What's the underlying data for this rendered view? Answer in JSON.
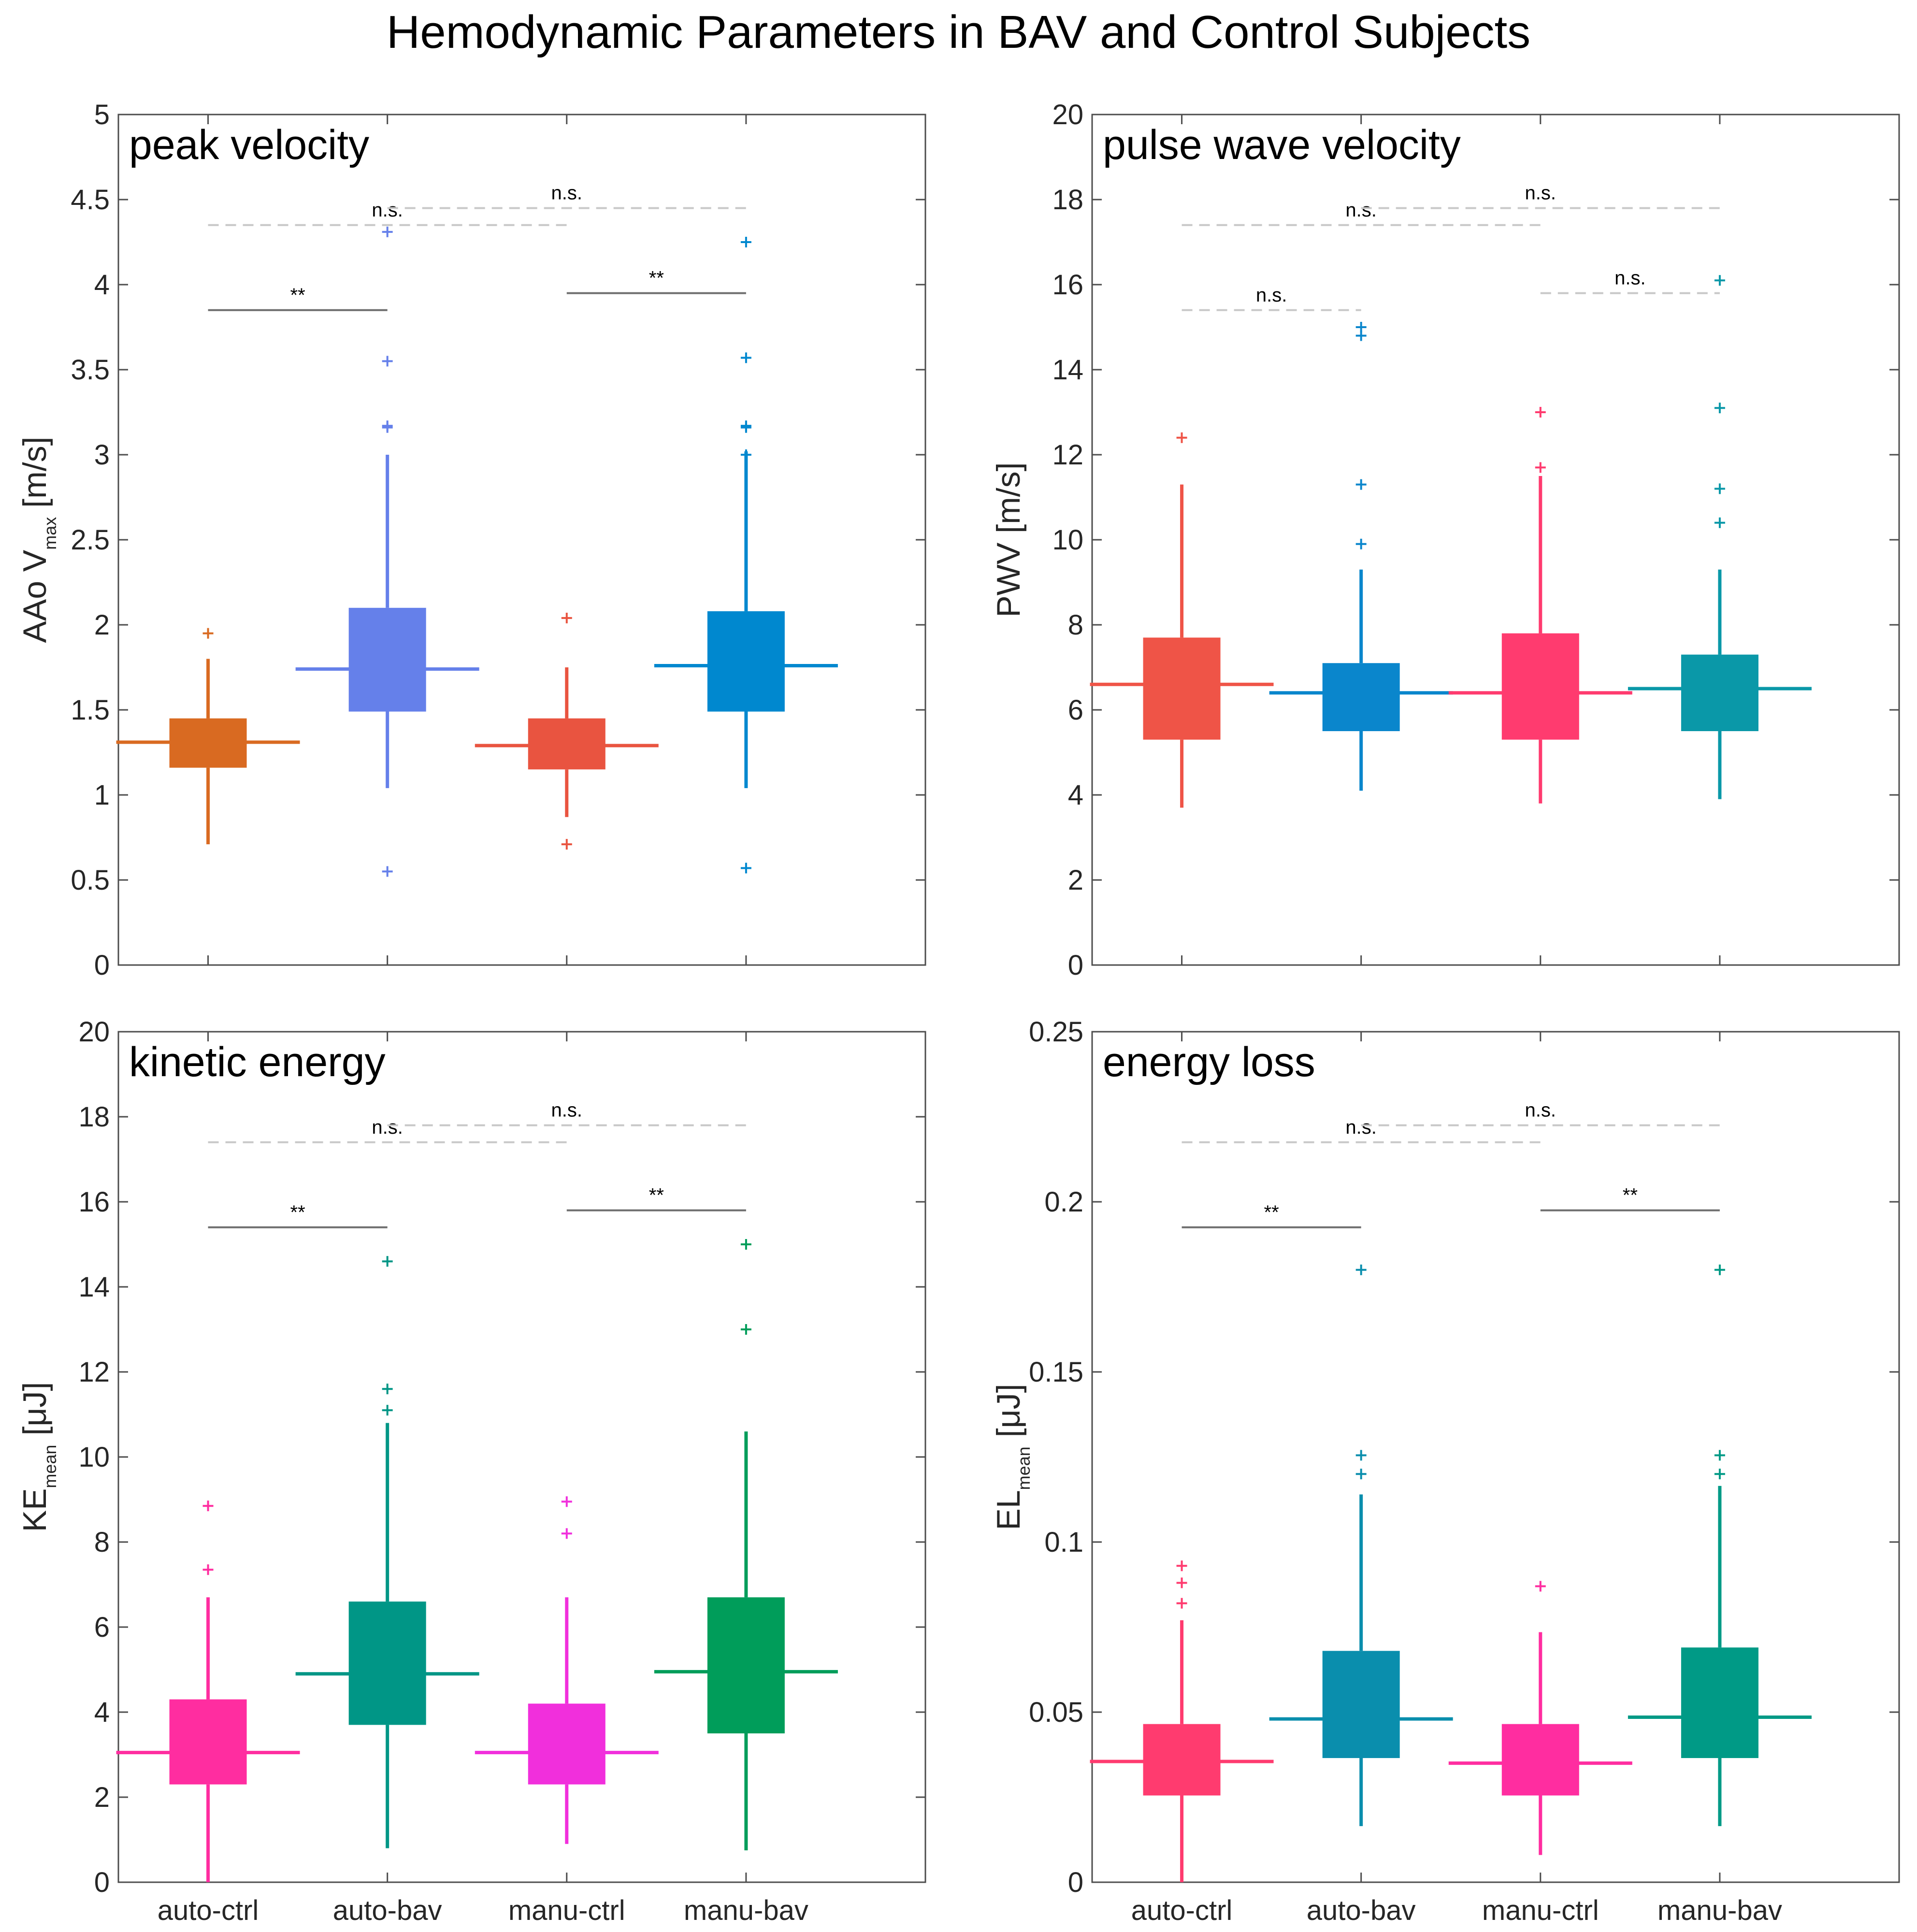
{
  "title": "Hemodynamic Parameters in BAV and Control Subjects",
  "chart_data": [
    {
      "type": "box",
      "title": "peak velocity",
      "ylabel": {
        "main": "AAo V",
        "sub": "max",
        "unit": "[m/s]"
      },
      "ylim": [
        0,
        5
      ],
      "yticks": [
        "0",
        "0.5",
        "1",
        "1.5",
        "2",
        "2.5",
        "3",
        "3.5",
        "4",
        "4.5",
        "5"
      ],
      "categories": [
        "auto-ctrl",
        "auto-bav",
        "manu-ctrl",
        "manu-bav"
      ],
      "boxes": [
        {
          "color": "#D96A21",
          "q1": 1.16,
          "median": 1.31,
          "q3": 1.45,
          "whisker_low": 0.71,
          "whisker_high": 1.8,
          "outliers": [
            1.95
          ]
        },
        {
          "color": "#6580EA",
          "q1": 1.49,
          "median": 1.74,
          "q3": 2.1,
          "whisker_low": 1.04,
          "whisker_high": 3.0,
          "outliers": [
            0.55,
            3.16,
            3.17,
            3.55,
            4.31
          ]
        },
        {
          "color": "#E95440",
          "q1": 1.15,
          "median": 1.29,
          "q3": 1.45,
          "whisker_low": 0.87,
          "whisker_high": 1.75,
          "outliers": [
            0.71,
            2.04
          ]
        },
        {
          "color": "#0088CF",
          "q1": 1.49,
          "median": 1.76,
          "q3": 2.08,
          "whisker_low": 1.04,
          "whisker_high": 3.02,
          "outliers": [
            0.57,
            3.0,
            3.16,
            3.17,
            3.57,
            4.25
          ]
        }
      ],
      "comparisons": [
        {
          "from": 0,
          "to": 1,
          "y": 3.85,
          "label": "**",
          "style": "solid"
        },
        {
          "from": 2,
          "to": 3,
          "y": 3.95,
          "label": "**",
          "style": "solid"
        },
        {
          "from": 0,
          "to": 2,
          "y": 4.35,
          "label": "n.s.",
          "style": "dashed"
        },
        {
          "from": 1,
          "to": 3,
          "y": 4.45,
          "label": "n.s.",
          "style": "dashed"
        }
      ]
    },
    {
      "type": "box",
      "title": "pulse wave velocity",
      "ylabel": {
        "main": "PWV",
        "sub": "",
        "unit": "[m/s]"
      },
      "ylim": [
        0,
        20
      ],
      "yticks": [
        "0",
        "2",
        "4",
        "6",
        "8",
        "10",
        "12",
        "14",
        "16",
        "18",
        "20"
      ],
      "categories": [
        "auto-ctrl",
        "auto-bav",
        "manu-ctrl",
        "manu-bav"
      ],
      "boxes": [
        {
          "color": "#EF5447",
          "q1": 5.3,
          "median": 6.6,
          "q3": 7.7,
          "whisker_low": 3.7,
          "whisker_high": 11.3,
          "outliers": [
            12.4
          ]
        },
        {
          "color": "#0A86CC",
          "q1": 5.5,
          "median": 6.4,
          "q3": 7.1,
          "whisker_low": 4.1,
          "whisker_high": 9.3,
          "outliers": [
            9.9,
            11.3,
            14.8,
            15.0
          ]
        },
        {
          "color": "#FF3B6F",
          "q1": 5.3,
          "median": 6.4,
          "q3": 7.8,
          "whisker_low": 3.8,
          "whisker_high": 11.5,
          "outliers": [
            11.7,
            13.0
          ]
        },
        {
          "color": "#0A98A8",
          "q1": 5.5,
          "median": 6.5,
          "q3": 7.3,
          "whisker_low": 3.9,
          "whisker_high": 9.3,
          "outliers": [
            10.4,
            11.2,
            13.1,
            16.1
          ]
        }
      ],
      "comparisons": [
        {
          "from": 0,
          "to": 1,
          "y": 15.4,
          "label": "n.s.",
          "style": "dashed"
        },
        {
          "from": 2,
          "to": 3,
          "y": 15.8,
          "label": "n.s.",
          "style": "dashed"
        },
        {
          "from": 0,
          "to": 2,
          "y": 17.4,
          "label": "n.s.",
          "style": "dashed"
        },
        {
          "from": 1,
          "to": 3,
          "y": 17.8,
          "label": "n.s.",
          "style": "dashed"
        }
      ]
    },
    {
      "type": "box",
      "title": "kinetic energy",
      "ylabel": {
        "main": "KE",
        "sub": "mean",
        "unit": "[μJ]"
      },
      "ylim": [
        0,
        20
      ],
      "yticks": [
        "0",
        "2",
        "4",
        "6",
        "8",
        "10",
        "12",
        "14",
        "16",
        "18",
        "20"
      ],
      "categories": [
        "auto-ctrl",
        "auto-bav",
        "manu-ctrl",
        "manu-bav"
      ],
      "boxes": [
        {
          "color": "#FF2DA0",
          "q1": 2.3,
          "median": 3.05,
          "q3": 4.3,
          "whisker_low": 0.0,
          "whisker_high": 6.7,
          "outliers": [
            7.35,
            8.85
          ]
        },
        {
          "color": "#009686",
          "q1": 3.7,
          "median": 4.9,
          "q3": 6.6,
          "whisker_low": 0.8,
          "whisker_high": 10.8,
          "outliers": [
            11.1,
            11.6,
            14.6
          ]
        },
        {
          "color": "#F12FDC",
          "q1": 2.3,
          "median": 3.05,
          "q3": 4.2,
          "whisker_low": 0.9,
          "whisker_high": 6.7,
          "outliers": [
            8.2,
            8.95
          ]
        },
        {
          "color": "#009D5A",
          "q1": 3.5,
          "median": 4.95,
          "q3": 6.7,
          "whisker_low": 0.75,
          "whisker_high": 10.6,
          "outliers": [
            13.0,
            15.0
          ]
        }
      ],
      "comparisons": [
        {
          "from": 0,
          "to": 1,
          "y": 15.4,
          "label": "**",
          "style": "solid"
        },
        {
          "from": 2,
          "to": 3,
          "y": 15.8,
          "label": "**",
          "style": "solid"
        },
        {
          "from": 0,
          "to": 2,
          "y": 17.4,
          "label": "n.s.",
          "style": "dashed"
        },
        {
          "from": 1,
          "to": 3,
          "y": 17.8,
          "label": "n.s.",
          "style": "dashed"
        }
      ]
    },
    {
      "type": "box",
      "title": "energy loss",
      "ylabel": {
        "main": "EL",
        "sub": "mean",
        "unit": "[μJ]"
      },
      "ylim": [
        0,
        0.25
      ],
      "yticks": [
        "0",
        "0.05",
        "0.1",
        "0.15",
        "0.2",
        "0.25"
      ],
      "categories": [
        "auto-ctrl",
        "auto-bav",
        "manu-ctrl",
        "manu-bav"
      ],
      "boxes": [
        {
          "color": "#FF3B6F",
          "q1": 0.0255,
          "median": 0.0355,
          "q3": 0.0465,
          "whisker_low": 0.0,
          "whisker_high": 0.077,
          "outliers": [
            0.082,
            0.088,
            0.093
          ]
        },
        {
          "color": "#0A8EAD",
          "q1": 0.0365,
          "median": 0.048,
          "q3": 0.068,
          "whisker_low": 0.0165,
          "whisker_high": 0.114,
          "outliers": [
            0.12,
            0.1255,
            0.18
          ]
        },
        {
          "color": "#FF2DA0",
          "q1": 0.0255,
          "median": 0.035,
          "q3": 0.0465,
          "whisker_low": 0.008,
          "whisker_high": 0.0735,
          "outliers": [
            0.087
          ]
        },
        {
          "color": "#009A86",
          "q1": 0.0365,
          "median": 0.0485,
          "q3": 0.069,
          "whisker_low": 0.0165,
          "whisker_high": 0.1165,
          "outliers": [
            0.12,
            0.1255,
            0.18
          ]
        }
      ],
      "comparisons": [
        {
          "from": 0,
          "to": 1,
          "y": 0.1925,
          "label": "**",
          "style": "solid"
        },
        {
          "from": 2,
          "to": 3,
          "y": 0.1975,
          "label": "**",
          "style": "solid"
        },
        {
          "from": 0,
          "to": 2,
          "y": 0.2175,
          "label": "n.s.",
          "style": "dashed"
        },
        {
          "from": 1,
          "to": 3,
          "y": 0.2225,
          "label": "n.s.",
          "style": "dashed"
        }
      ]
    }
  ]
}
